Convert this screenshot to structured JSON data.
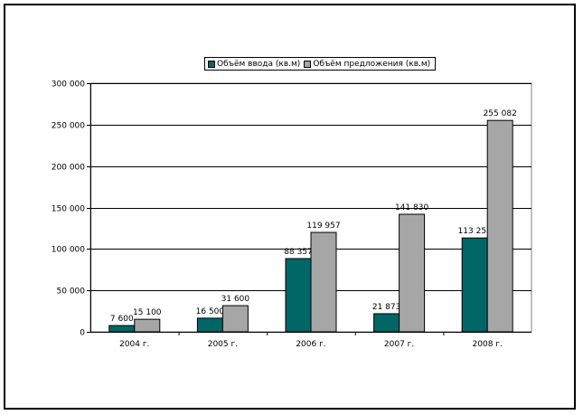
{
  "chart_data": {
    "type": "bar",
    "categories": [
      "2004 г.",
      "2005 г.",
      "2006 г.",
      "2007 г.",
      "2008 г."
    ],
    "series": [
      {
        "name": "Объём ввода (кв.м)",
        "color": "#006666",
        "values": [
          7600,
          16500,
          88357,
          21873,
          113252
        ],
        "labels": [
          "7 600",
          "16 500",
          "88 357",
          "21 873",
          "113 252"
        ]
      },
      {
        "name": "Объём предложения (кв.м)",
        "color": "#a6a6a6",
        "values": [
          15100,
          31600,
          119957,
          141830,
          255082
        ],
        "labels": [
          "15 100",
          "31 600",
          "119 957",
          "141 830",
          "255 082"
        ]
      }
    ],
    "ylim": [
      0,
      300000
    ],
    "yticks": [
      0,
      50000,
      100000,
      150000,
      200000,
      250000,
      300000
    ],
    "ytick_labels": [
      "0",
      "50 000",
      "100 000",
      "150 000",
      "200 000",
      "250 000",
      "300 000"
    ],
    "grid": true,
    "legend_position": "top-center"
  }
}
